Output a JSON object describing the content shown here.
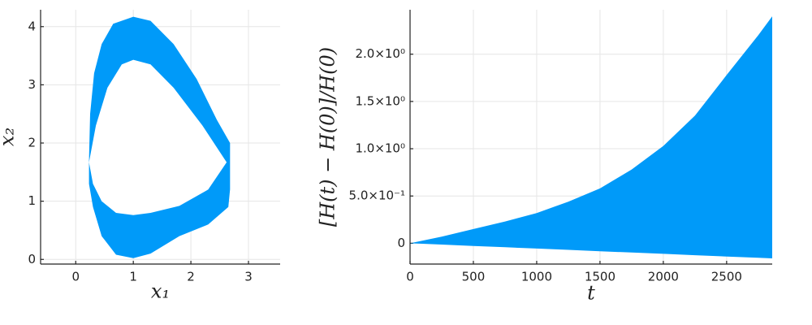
{
  "chart_data": [
    {
      "type": "region",
      "color": "#009af9",
      "grid": true,
      "x_label": "x₁",
      "y_label": "x₂",
      "xlim": [
        -0.61,
        3.55
      ],
      "ylim": [
        -0.08,
        4.29
      ],
      "xticks": [
        0,
        1,
        2,
        3
      ],
      "yticks": [
        0,
        1,
        2,
        3,
        4
      ],
      "outer": {
        "x": [
          0.23,
          0.25,
          0.32,
          0.45,
          0.65,
          1.0,
          1.3,
          1.7,
          2.1,
          2.45,
          2.68,
          2.68,
          2.65,
          2.3,
          1.8,
          1.3,
          1.0,
          0.7,
          0.45,
          0.3,
          0.23
        ],
        "y": [
          1.7,
          2.5,
          3.2,
          3.7,
          4.05,
          4.17,
          4.1,
          3.7,
          3.1,
          2.4,
          2.0,
          1.2,
          0.9,
          0.6,
          0.4,
          0.1,
          0.02,
          0.08,
          0.4,
          0.9,
          1.3
        ]
      },
      "inner": {
        "x": [
          0.23,
          0.35,
          0.55,
          0.8,
          1.0,
          1.3,
          1.7,
          2.2,
          2.62,
          2.3,
          1.8,
          1.3,
          1.0,
          0.7,
          0.45,
          0.3
        ],
        "y": [
          1.67,
          2.3,
          2.95,
          3.35,
          3.43,
          3.35,
          2.95,
          2.3,
          1.67,
          1.2,
          0.92,
          0.8,
          0.76,
          0.8,
          1.0,
          1.3
        ]
      }
    },
    {
      "type": "band",
      "color": "#009af9",
      "grid": true,
      "x_label": "t",
      "y_label": "[H(t) − H(0)]/H(0)",
      "xlim": [
        0,
        2860
      ],
      "ylim": [
        -0.22,
        2.47
      ],
      "xticks": [
        0,
        500,
        1000,
        1500,
        2000,
        2500
      ],
      "yticks": [
        0,
        {
          "value": 0.5,
          "label": "5.0×10⁻¹"
        },
        {
          "value": 1.0,
          "label": "1.0×10⁰"
        },
        {
          "value": 1.5,
          "label": "1.5×10⁰"
        },
        {
          "value": 2.0,
          "label": "2.0×10⁰"
        }
      ],
      "x": [
        0,
        250,
        500,
        750,
        1000,
        1250,
        1500,
        1750,
        2000,
        2250,
        2500,
        2750,
        2860
      ],
      "upper": [
        0,
        0.07,
        0.15,
        0.23,
        0.32,
        0.44,
        0.58,
        0.78,
        1.03,
        1.35,
        1.78,
        2.2,
        2.4
      ],
      "lower": [
        0,
        -0.014,
        -0.028,
        -0.042,
        -0.056,
        -0.07,
        -0.084,
        -0.098,
        -0.112,
        -0.126,
        -0.14,
        -0.154,
        -0.16
      ]
    }
  ]
}
